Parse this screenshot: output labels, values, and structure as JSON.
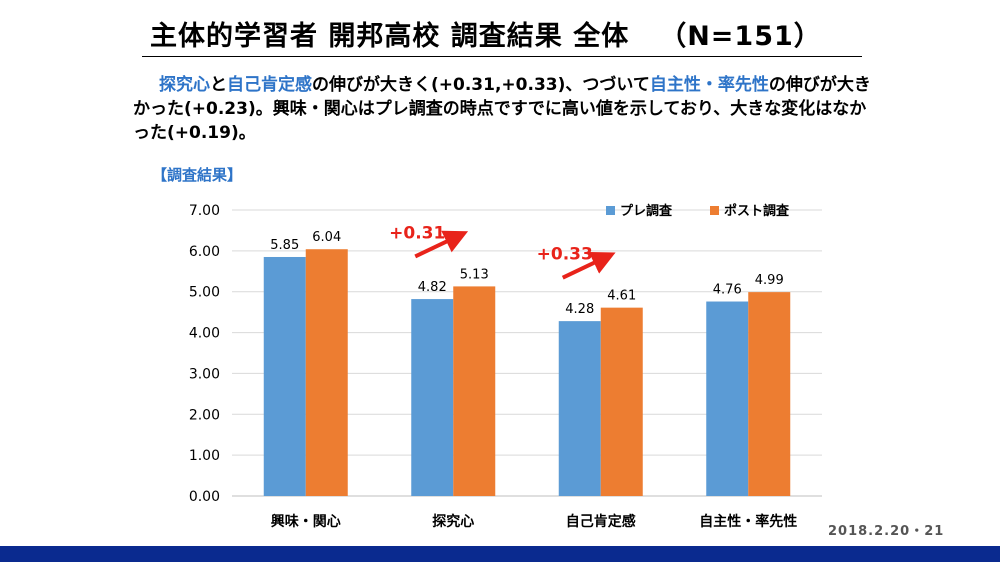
{
  "slide": {
    "title": "主体的学習者 開邦高校 調査結果 全体",
    "n_label": "（N=151）",
    "summary": [
      {
        "text": "探究心",
        "highlight": true
      },
      {
        "text": "と",
        "highlight": false
      },
      {
        "text": "自己肯定感",
        "highlight": true
      },
      {
        "text": "の伸びが大きく(+0.31,+0.33)、つづいて",
        "highlight": false
      },
      {
        "text": "自主性・率先性",
        "highlight": true
      },
      {
        "text": "の伸びが大きかった(+0.23)。興味・関心はプレ調査の時点ですでに高い値を示しており、大きな変化はなかった(+0.19)。",
        "highlight": false
      }
    ],
    "section_label": "【調査結果】",
    "footer": "2018.2.20・21"
  },
  "colors": {
    "pre": "#5b9bd5",
    "post": "#ed7d31",
    "highlight_text": "#2e74c8",
    "annotation": "#e8231a",
    "footer_bar": "#0a2a8f"
  },
  "chart_data": {
    "type": "bar",
    "categories": [
      "興味・関心",
      "探究心",
      "自己肯定感",
      "自主性・率先性"
    ],
    "series": [
      {
        "name": "プレ調査",
        "values": [
          5.85,
          4.82,
          4.28,
          4.76
        ]
      },
      {
        "name": "ポスト調査",
        "values": [
          6.04,
          5.13,
          4.61,
          4.99
        ]
      }
    ],
    "data_labels": [
      [
        "5.85",
        "4.82",
        "4.28",
        "4.76"
      ],
      [
        "6.04",
        "5.13",
        "4.61",
        "4.99"
      ]
    ],
    "y_ticks": [
      "0.00",
      "1.00",
      "2.00",
      "3.00",
      "4.00",
      "5.00",
      "6.00",
      "7.00"
    ],
    "ylim": [
      0,
      7
    ],
    "grid": true,
    "legend_position": "top-right",
    "annotations": [
      {
        "category": "探究心",
        "text": "+0.31"
      },
      {
        "category": "自己肯定感",
        "text": "+0.33"
      }
    ]
  }
}
